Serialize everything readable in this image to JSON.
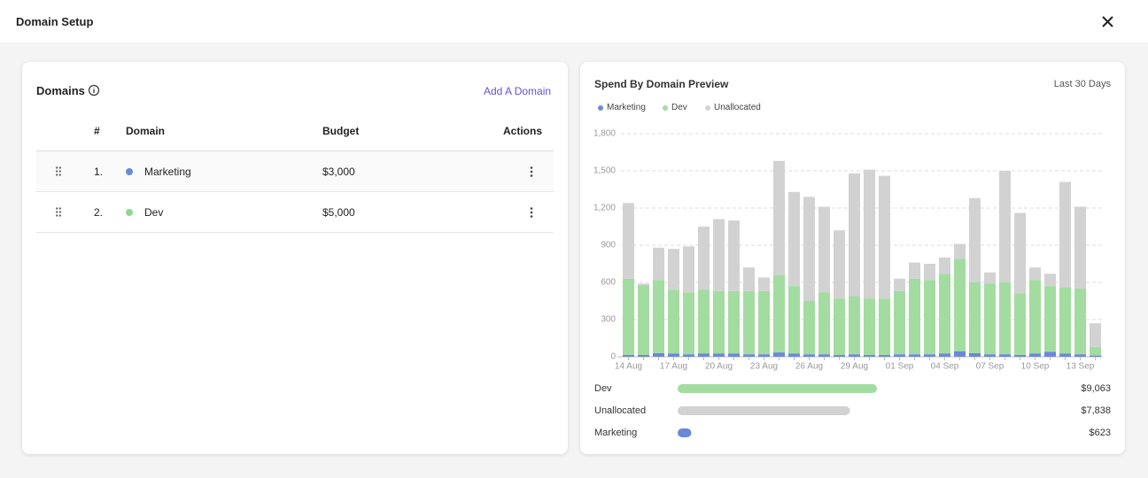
{
  "header": {
    "title": "Domain Setup"
  },
  "domains": {
    "title": "Domains",
    "add_button": "Add A Domain",
    "columns": [
      "#",
      "Domain",
      "Budget",
      "Actions"
    ],
    "rows": [
      {
        "index": "1.",
        "name": "Marketing",
        "color": "#6a89d9",
        "budget": "$3,000"
      },
      {
        "index": "2.",
        "name": "Dev",
        "color": "#8fd694",
        "budget": "$5,000"
      }
    ]
  },
  "chart_data": {
    "type": "bar",
    "stacked": true,
    "title": "Spend By Domain Preview",
    "subtitle": "Last 30 Days",
    "categories": [
      "14 Aug",
      null,
      null,
      "17 Aug",
      null,
      null,
      "20 Aug",
      null,
      null,
      "23 Aug",
      null,
      null,
      "26 Aug",
      null,
      null,
      "29 Aug",
      null,
      null,
      "01 Sep",
      null,
      null,
      "04 Sep",
      null,
      null,
      "07 Sep",
      null,
      null,
      "10 Sep",
      null,
      null,
      "13 Sep",
      null
    ],
    "series": [
      {
        "name": "Marketing",
        "color": "#6a89d9",
        "values": [
          15,
          15,
          30,
          25,
          20,
          25,
          25,
          25,
          20,
          20,
          35,
          25,
          20,
          20,
          15,
          20,
          15,
          15,
          20,
          20,
          20,
          25,
          45,
          30,
          20,
          20,
          15,
          25,
          40,
          25,
          20,
          10
        ]
      },
      {
        "name": "Dev",
        "color": "#a3dca0",
        "values": [
          615,
          565,
          590,
          515,
          500,
          515,
          505,
          505,
          510,
          510,
          625,
          545,
          430,
          500,
          455,
          470,
          455,
          455,
          510,
          610,
          600,
          645,
          745,
          570,
          570,
          580,
          495,
          595,
          530,
          535,
          530,
          70
        ]
      },
      {
        "name": "Unallocated",
        "color": "#d2d2d2",
        "values": [
          610,
          10,
          260,
          330,
          370,
          510,
          580,
          570,
          190,
          110,
          920,
          760,
          840,
          690,
          550,
          990,
          1040,
          990,
          100,
          130,
          130,
          130,
          120,
          680,
          90,
          900,
          650,
          100,
          100,
          850,
          660,
          190
        ]
      }
    ],
    "ylim": [
      0,
      1800
    ],
    "yticks": [
      0,
      300,
      600,
      900,
      {
        "value": 1200,
        "label": "1,200"
      },
      {
        "value": 1500,
        "label": "1,500"
      },
      {
        "value": 1800,
        "label": "1,800"
      }
    ],
    "grid": true,
    "legend": "top-left"
  },
  "summary": [
    {
      "name": "Dev",
      "color": "#a3dca0",
      "value": 9063,
      "value_label": "$9,063"
    },
    {
      "name": "Unallocated",
      "color": "#d2d2d2",
      "value": 7838,
      "value_label": "$7,838"
    },
    {
      "name": "Marketing",
      "color": "#6a89d9",
      "value": 623,
      "value_label": "$623"
    }
  ]
}
